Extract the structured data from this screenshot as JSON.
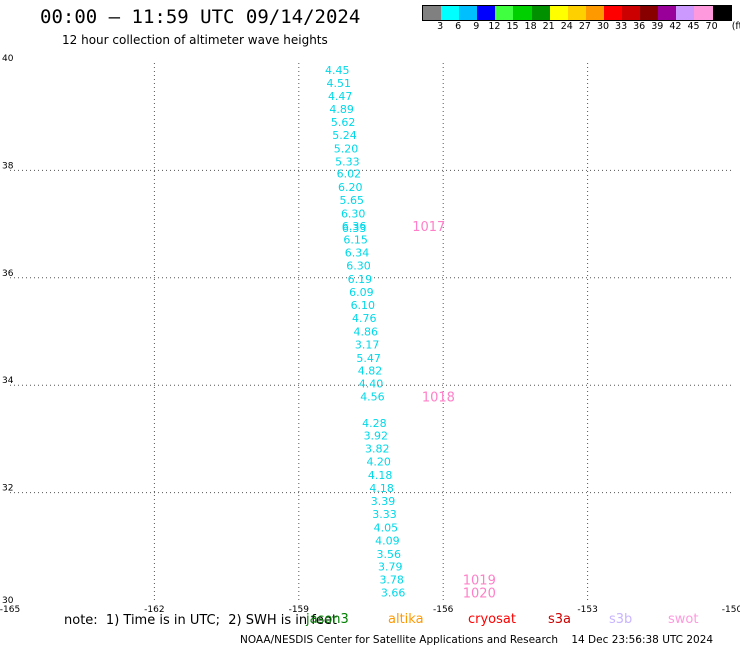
{
  "header": {
    "title": "00:00 – 11:59 UTC 09/14/2024",
    "subtitle": "12 hour collection of altimeter wave heights"
  },
  "colorbar": {
    "unit_label": "(ft)",
    "bins": [
      {
        "label": "3",
        "color": "#808080"
      },
      {
        "label": "6",
        "color": "#00ffff"
      },
      {
        "label": "9",
        "color": "#00bfff"
      },
      {
        "label": "12",
        "color": "#0000ff"
      },
      {
        "label": "15",
        "color": "#40ff40"
      },
      {
        "label": "18",
        "color": "#00d000"
      },
      {
        "label": "21",
        "color": "#009000"
      },
      {
        "label": "24",
        "color": "#ffff00"
      },
      {
        "label": "27",
        "color": "#ffd000"
      },
      {
        "label": "30",
        "color": "#ff9900"
      },
      {
        "label": "33",
        "color": "#ff0000"
      },
      {
        "label": "36",
        "color": "#cc0000"
      },
      {
        "label": "39",
        "color": "#880000"
      },
      {
        "label": "42",
        "color": "#990099"
      },
      {
        "label": "45",
        "color": "#cc99ff"
      },
      {
        "label": "70",
        "color": "#ff99dd"
      },
      {
        "label": "",
        "color": "#000000"
      }
    ]
  },
  "map": {
    "lon_ticks": [
      "-165",
      "-162",
      "-159",
      "-156",
      "-153",
      "-150"
    ],
    "lat_ticks": [
      "30",
      "32",
      "34",
      "36",
      "38",
      "40"
    ],
    "lon_range": [
      -165,
      -150
    ],
    "lat_range": [
      30,
      40
    ],
    "grid": "dotted"
  },
  "chart_data": {
    "type": "scatter",
    "value_unit": "ft",
    "wave_heights": [
      {
        "lon": -158.2,
        "lat": 39.87,
        "label": "4.45"
      },
      {
        "lon": -158.17,
        "lat": 39.63,
        "label": "4.51"
      },
      {
        "lon": -158.14,
        "lat": 39.39,
        "label": "4.47"
      },
      {
        "lon": -158.11,
        "lat": 39.14,
        "label": "4.89"
      },
      {
        "lon": -158.08,
        "lat": 38.9,
        "label": "5.62"
      },
      {
        "lon": -158.05,
        "lat": 38.66,
        "label": "5.24"
      },
      {
        "lon": -158.02,
        "lat": 38.41,
        "label": "5.20"
      },
      {
        "lon": -157.99,
        "lat": 38.17,
        "label": "5.33"
      },
      {
        "lon": -157.96,
        "lat": 37.94,
        "label": "6.02"
      },
      {
        "lon": -157.93,
        "lat": 37.69,
        "label": "6.20"
      },
      {
        "lon": -157.9,
        "lat": 37.45,
        "label": "5.65"
      },
      {
        "lon": -157.87,
        "lat": 37.2,
        "label": "6.30"
      },
      {
        "lon": -157.85,
        "lat": 36.96,
        "label": "6.36"
      },
      {
        "lon": -157.85,
        "lat": 36.93,
        "label": "6.33"
      },
      {
        "lon": -157.82,
        "lat": 36.71,
        "label": "6.15"
      },
      {
        "lon": -157.79,
        "lat": 36.47,
        "label": "6.34"
      },
      {
        "lon": -157.76,
        "lat": 36.23,
        "label": "6.30"
      },
      {
        "lon": -157.73,
        "lat": 35.98,
        "label": "6.19"
      },
      {
        "lon": -157.7,
        "lat": 35.74,
        "label": "6.09"
      },
      {
        "lon": -157.67,
        "lat": 35.49,
        "label": "6.10"
      },
      {
        "lon": -157.64,
        "lat": 35.25,
        "label": "4.76"
      },
      {
        "lon": -157.61,
        "lat": 35.0,
        "label": "4.86"
      },
      {
        "lon": -157.58,
        "lat": 34.76,
        "label": "3.17"
      },
      {
        "lon": -157.55,
        "lat": 34.51,
        "label": "5.47"
      },
      {
        "lon": -157.52,
        "lat": 34.27,
        "label": "4.82"
      },
      {
        "lon": -157.5,
        "lat": 34.03,
        "label": "4.40"
      },
      {
        "lon": -157.47,
        "lat": 33.79,
        "label": "4.56"
      },
      {
        "lon": -157.43,
        "lat": 33.3,
        "label": "4.28"
      },
      {
        "lon": -157.4,
        "lat": 33.06,
        "label": "3.92"
      },
      {
        "lon": -157.37,
        "lat": 32.82,
        "label": "3.82"
      },
      {
        "lon": -157.34,
        "lat": 32.58,
        "label": "4.20"
      },
      {
        "lon": -157.31,
        "lat": 32.33,
        "label": "4.18"
      },
      {
        "lon": -157.28,
        "lat": 32.09,
        "label": "4.18"
      },
      {
        "lon": -157.25,
        "lat": 31.84,
        "label": "3.39"
      },
      {
        "lon": -157.22,
        "lat": 31.6,
        "label": "3.33"
      },
      {
        "lon": -157.19,
        "lat": 31.35,
        "label": "4.05"
      },
      {
        "lon": -157.16,
        "lat": 31.11,
        "label": "4.09"
      },
      {
        "lon": -157.13,
        "lat": 30.86,
        "label": "3.56"
      },
      {
        "lon": -157.1,
        "lat": 30.62,
        "label": "3.79"
      },
      {
        "lon": -157.07,
        "lat": 30.38,
        "label": "3.78"
      },
      {
        "lon": -157.04,
        "lat": 30.14,
        "label": "3.66"
      }
    ],
    "time_labels": [
      {
        "lon": -156.3,
        "lat": 36.96,
        "label": "1017"
      },
      {
        "lon": -156.1,
        "lat": 33.79,
        "label": "1018"
      },
      {
        "lon": -155.25,
        "lat": 30.38,
        "label": "1019"
      },
      {
        "lon": -155.25,
        "lat": 30.14,
        "label": "1020"
      }
    ],
    "wave_label_color": "#00d8e8",
    "time_label_color": "#ff80c8"
  },
  "note": "note:  1) Time is in UTC;  2) SWH is in feet",
  "legend": [
    {
      "name": "jason3",
      "color": "#008000"
    },
    {
      "name": "altika",
      "color": "#ff9900"
    },
    {
      "name": "cryosat",
      "color": "#ff0000"
    },
    {
      "name": "s3a",
      "color": "#cc0000"
    },
    {
      "name": "s3b",
      "color": "#c8b4ff"
    },
    {
      "name": "swot",
      "color": "#ff99dd"
    }
  ],
  "footer": "NOAA/NESDIS Center for Satellite Applications and Research    14 Dec 23:56:38 UTC 2024"
}
